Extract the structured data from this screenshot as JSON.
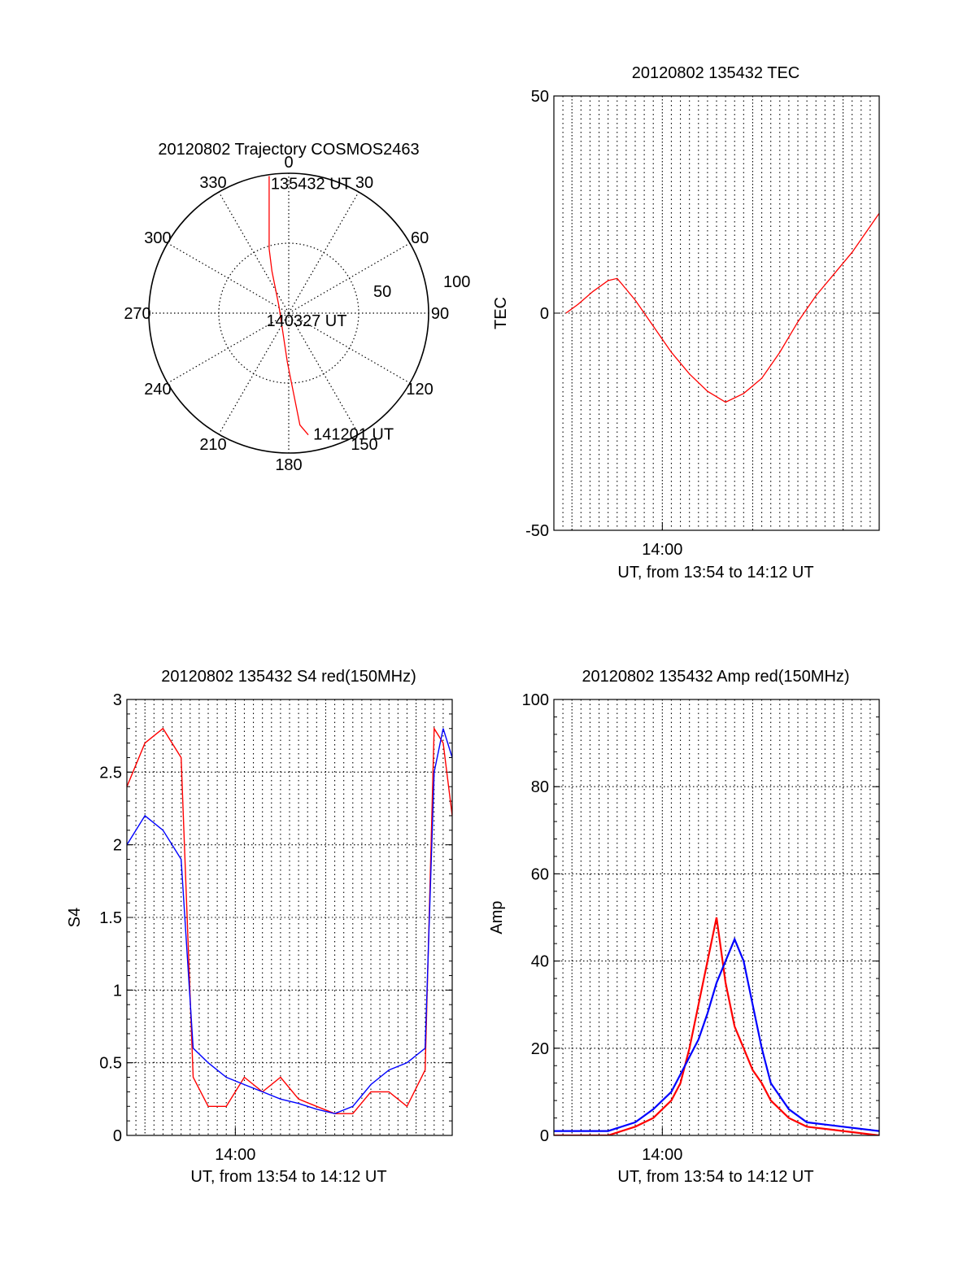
{
  "colors": {
    "red": "#ff0000",
    "blue": "#0000ff",
    "axis": "#000000",
    "grid": "#000000"
  },
  "chart_data": [
    {
      "id": "trajectory",
      "type": "polar",
      "title": "20120802 Trajectory COSMOS2463",
      "angle_labels": [
        "0",
        "30",
        "60",
        "90",
        "120",
        "150",
        "180",
        "210",
        "240",
        "270",
        "300",
        "330"
      ],
      "radial_labels": [
        "50",
        "100"
      ],
      "r_max": 100,
      "grid": true,
      "series": [
        {
          "color": "red",
          "points": [
            [
              -14,
              98
            ],
            [
              -14,
              58
            ],
            [
              -14,
              46
            ],
            [
              -12,
              30
            ],
            [
              -7,
              5
            ],
            [
              -1,
              -35
            ],
            [
              8,
              -80
            ],
            [
              14,
              -87
            ]
          ]
        }
      ],
      "annotations": [
        {
          "text": "135432 UT",
          "at": "start"
        },
        {
          "text": "140327 UT",
          "at": "middle"
        },
        {
          "text": "141201 UT",
          "at": "end"
        }
      ]
    },
    {
      "id": "tec",
      "type": "line",
      "title": "20120802 135432 TEC",
      "ylabel": "TEC",
      "xlabel": "UT, from 13:54 to 14:12 UT",
      "xlim": [
        "13:54",
        "14:12"
      ],
      "ylim": [
        -50,
        50
      ],
      "yticks": [
        "50",
        "0",
        "-50"
      ],
      "xticks": [
        {
          "t": "14:00",
          "label": "14:00"
        }
      ],
      "grid": true,
      "series": [
        {
          "color": "red",
          "x": [
            "13:54:40",
            "13:55:20",
            "13:56:10",
            "13:57:00",
            "13:57:30",
            "13:58:30",
            "13:59:30",
            "14:00:30",
            "14:01:30",
            "14:02:30",
            "14:03:30",
            "14:04:30",
            "14:05:30",
            "14:06:30",
            "14:07:30",
            "14:08:30",
            "14:09:30",
            "14:10:30",
            "14:11:00",
            "14:11:30",
            "14:12:00"
          ],
          "y": [
            0,
            2,
            5,
            7.5,
            8,
            3,
            -3,
            -9,
            -14,
            -18,
            -20.5,
            -18.5,
            -15,
            -9,
            -2,
            4,
            9,
            14,
            17,
            20,
            23
          ]
        }
      ]
    },
    {
      "id": "s4",
      "type": "line",
      "title": "20120802 135432 S4 red(150MHz)",
      "ylabel": "S4",
      "xlabel": "UT, from 13:54 to 14:12 UT",
      "xlim": [
        "13:54",
        "14:12"
      ],
      "ylim": [
        0,
        3
      ],
      "yticks": [
        "3",
        "2.5",
        "2",
        "1.5",
        "1",
        "0.5",
        "0"
      ],
      "xticks": [
        {
          "t": "14:00",
          "label": "14:00"
        }
      ],
      "grid": true,
      "series": [
        {
          "color": "red",
          "x": [
            "13:54:00",
            "13:55:00",
            "13:56:00",
            "13:57:00",
            "13:57:40",
            "13:58:30",
            "13:59:30",
            "14:00:30",
            "14:01:30",
            "14:02:30",
            "14:03:30",
            "14:04:30",
            "14:05:30",
            "14:06:30",
            "14:07:30",
            "14:08:30",
            "14:09:30",
            "14:10:30",
            "14:11:00",
            "14:11:30",
            "14:12:00"
          ],
          "y": [
            2.4,
            2.7,
            2.8,
            2.6,
            0.4,
            0.2,
            0.2,
            0.4,
            0.3,
            0.4,
            0.25,
            0.2,
            0.15,
            0.15,
            0.3,
            0.3,
            0.2,
            0.45,
            2.8,
            2.7,
            2.2
          ]
        },
        {
          "color": "blue",
          "x": [
            "13:54:00",
            "13:55:00",
            "13:56:00",
            "13:57:00",
            "13:57:40",
            "13:58:30",
            "13:59:30",
            "14:00:30",
            "14:01:30",
            "14:02:30",
            "14:03:30",
            "14:04:30",
            "14:05:30",
            "14:06:30",
            "14:07:30",
            "14:08:30",
            "14:09:30",
            "14:10:30",
            "14:11:00",
            "14:11:30",
            "14:12:00"
          ],
          "y": [
            2.0,
            2.2,
            2.1,
            1.9,
            0.6,
            0.5,
            0.4,
            0.35,
            0.3,
            0.25,
            0.22,
            0.18,
            0.15,
            0.2,
            0.35,
            0.45,
            0.5,
            0.6,
            2.5,
            2.8,
            2.6
          ]
        }
      ]
    },
    {
      "id": "amp",
      "type": "line",
      "title": "20120802 135432 Amp red(150MHz)",
      "ylabel": "Amp",
      "xlabel": "UT, from 13:54 to 14:12 UT",
      "xlim": [
        "13:54",
        "14:12"
      ],
      "ylim": [
        0,
        100
      ],
      "yticks": [
        "100",
        "80",
        "60",
        "40",
        "20",
        "0"
      ],
      "xticks": [
        {
          "t": "14:00",
          "label": "14:00"
        }
      ],
      "grid": true,
      "series": [
        {
          "color": "red",
          "x": [
            "13:54:00",
            "13:57:00",
            "13:58:30",
            "13:59:30",
            "14:00:30",
            "14:01:00",
            "14:01:30",
            "14:02:00",
            "14:02:30",
            "14:03:00",
            "14:03:30",
            "14:04:00",
            "14:04:30",
            "14:05:00",
            "14:05:30",
            "14:06:00",
            "14:07:00",
            "14:08:00",
            "14:10:00",
            "14:12:00"
          ],
          "y": [
            0,
            0,
            2,
            4,
            8,
            12,
            20,
            30,
            40,
            50,
            35,
            25,
            20,
            15,
            12,
            8,
            4,
            2,
            1,
            0
          ]
        },
        {
          "color": "blue",
          "x": [
            "13:54:00",
            "13:57:00",
            "13:58:30",
            "13:59:30",
            "14:00:30",
            "14:01:00",
            "14:01:30",
            "14:02:00",
            "14:02:30",
            "14:03:00",
            "14:03:30",
            "14:04:00",
            "14:04:30",
            "14:05:00",
            "14:05:30",
            "14:06:00",
            "14:07:00",
            "14:08:00",
            "14:10:00",
            "14:12:00"
          ],
          "y": [
            1,
            1,
            3,
            6,
            10,
            14,
            18,
            22,
            28,
            35,
            40,
            45,
            40,
            30,
            20,
            12,
            6,
            3,
            2,
            1
          ]
        }
      ]
    }
  ]
}
